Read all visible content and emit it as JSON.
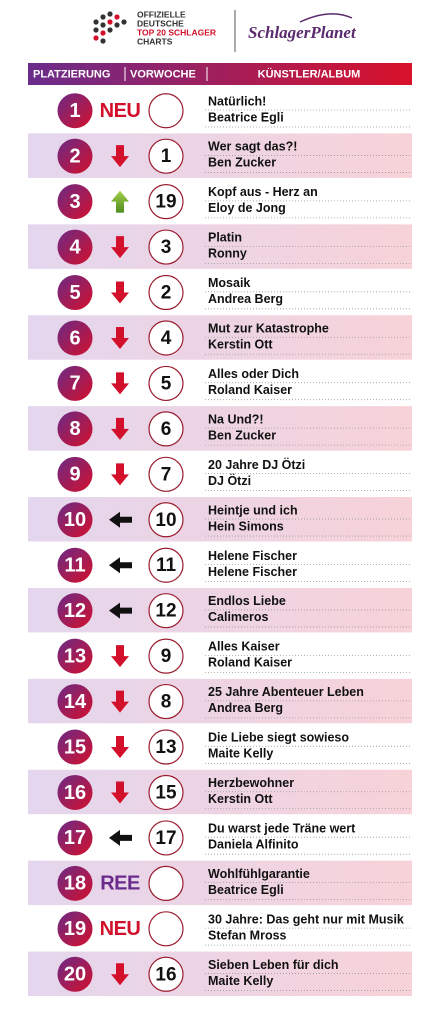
{
  "header": {
    "logo_lines": [
      "OFFIZIELLE",
      "DEUTSCHE",
      "TOP 20 SCHLAGER",
      "CHARTS"
    ],
    "brand": "SchlagerPlanet"
  },
  "columns": [
    "PLATZIERUNG",
    "VORWOCHE",
    "KÜNSTLER/ALBUM"
  ],
  "rows": [
    {
      "rank": "1",
      "marker": "NEU",
      "previous": null,
      "title": "Natürlich!",
      "artist": "Beatrice Egli"
    },
    {
      "rank": "2",
      "arrow": "down",
      "previous": "1",
      "title": "Wer sagt das?!",
      "artist": "Ben Zucker"
    },
    {
      "rank": "3",
      "arrow": "up",
      "previous": "19",
      "title": "Kopf aus - Herz an",
      "artist": "Eloy de Jong"
    },
    {
      "rank": "4",
      "arrow": "down",
      "previous": "3",
      "title": "Platin",
      "artist": "Ronny"
    },
    {
      "rank": "5",
      "arrow": "down",
      "previous": "2",
      "title": "Mosaik",
      "artist": "Andrea Berg"
    },
    {
      "rank": "6",
      "arrow": "down",
      "previous": "4",
      "title": "Mut zur Katastrophe",
      "artist": "Kerstin Ott"
    },
    {
      "rank": "7",
      "arrow": "down",
      "previous": "5",
      "title": "Alles oder Dich",
      "artist": "Roland Kaiser"
    },
    {
      "rank": "8",
      "arrow": "down",
      "previous": "6",
      "title": "Na Und?!",
      "artist": "Ben Zucker"
    },
    {
      "rank": "9",
      "arrow": "down",
      "previous": "7",
      "title": "20 Jahre DJ Ötzi",
      "artist": "DJ Ötzi"
    },
    {
      "rank": "10",
      "arrow": "same",
      "previous": "10",
      "title": "Heintje und ich",
      "artist": "Hein Simons"
    },
    {
      "rank": "11",
      "arrow": "same",
      "previous": "11",
      "title": "Helene Fischer",
      "artist": "Helene Fischer"
    },
    {
      "rank": "12",
      "arrow": "same",
      "previous": "12",
      "title": "Endlos Liebe",
      "artist": "Calimeros"
    },
    {
      "rank": "13",
      "arrow": "down",
      "previous": "9",
      "title": "Alles Kaiser",
      "artist": "Roland Kaiser"
    },
    {
      "rank": "14",
      "arrow": "down",
      "previous": "8",
      "title": "25 Jahre Abenteuer Leben",
      "artist": "Andrea Berg"
    },
    {
      "rank": "15",
      "arrow": "down",
      "previous": "13",
      "title": "Die Liebe siegt sowieso",
      "artist": "Maite Kelly"
    },
    {
      "rank": "16",
      "arrow": "down",
      "previous": "15",
      "title": "Herzbewohner",
      "artist": "Kerstin Ott"
    },
    {
      "rank": "17",
      "arrow": "same",
      "previous": "17",
      "title": "Du warst jede Träne wert",
      "artist": "Daniela Alfinito"
    },
    {
      "rank": "18",
      "marker": "REE",
      "previous": null,
      "title": "Wohlfühlgarantie",
      "artist": "Beatrice Egli"
    },
    {
      "rank": "19",
      "marker": "NEU",
      "previous": null,
      "title": "30 Jahre: Das geht nur mit Musik",
      "artist": "Stefan Mross"
    },
    {
      "rank": "20",
      "arrow": "down",
      "previous": "16",
      "title": "Sieben Leben für dich",
      "artist": "Maite Kelly"
    }
  ]
}
